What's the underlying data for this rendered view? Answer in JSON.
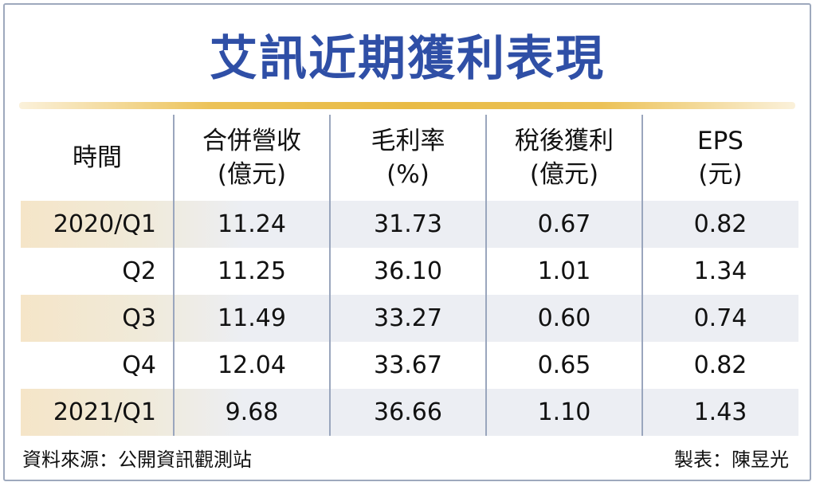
{
  "chart_data": {
    "type": "table",
    "title": "艾訊近期獲利表現",
    "columns": [
      {
        "line1": "時間",
        "line2": ""
      },
      {
        "line1": "合併營收",
        "line2": "(億元)"
      },
      {
        "line1": "毛利率",
        "line2": "(%)"
      },
      {
        "line1": "稅後獲利",
        "line2": "(億元)"
      },
      {
        "line1": "EPS",
        "line2": "(元)"
      }
    ],
    "rows": [
      {
        "period": "2020/Q1",
        "revenue": "11.24",
        "gross_margin": "31.73",
        "net_income": "0.67",
        "eps": "0.82"
      },
      {
        "period": "Q2",
        "revenue": "11.25",
        "gross_margin": "36.10",
        "net_income": "1.01",
        "eps": "1.34"
      },
      {
        "period": "Q3",
        "revenue": "11.49",
        "gross_margin": "33.27",
        "net_income": "0.60",
        "eps": "0.74"
      },
      {
        "period": "Q4",
        "revenue": "12.04",
        "gross_margin": "33.67",
        "net_income": "0.65",
        "eps": "0.82"
      },
      {
        "period": "2021/Q1",
        "revenue": "9.68",
        "gross_margin": "36.66",
        "net_income": "1.10",
        "eps": "1.43"
      }
    ],
    "source": "資料來源：公開資訊觀測站",
    "credit": "製表：陳昱光"
  }
}
